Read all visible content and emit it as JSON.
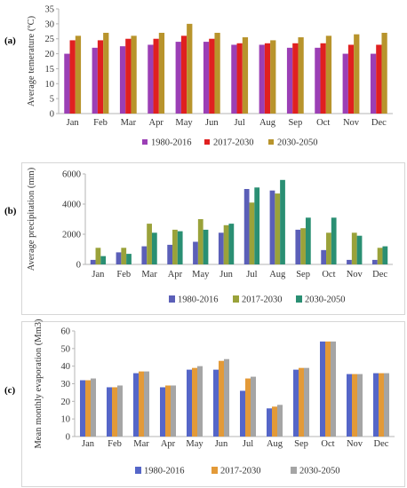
{
  "panels": [
    {
      "label": "(a)"
    },
    {
      "label": "(b)"
    },
    {
      "label": "(c)"
    }
  ],
  "chart_data": [
    {
      "type": "bar",
      "title": "",
      "xlabel": "",
      "ylabel": "Average temerature (ºC)",
      "ylim": [
        0,
        35
      ],
      "yticks": [
        0,
        5,
        10,
        15,
        20,
        25,
        30,
        35
      ],
      "grid": false,
      "legend": "bottom",
      "categories": [
        "Jan",
        "Feb",
        "Mar",
        "Apr",
        "May",
        "Jun",
        "Jul",
        "Aug",
        "Sep",
        "Oct",
        "Nov",
        "Dec"
      ],
      "series": [
        {
          "name": "1980-2016",
          "color": "#9b3fb5",
          "values": [
            20,
            22,
            22.5,
            23,
            24,
            24,
            23,
            23,
            22,
            22,
            20,
            20
          ]
        },
        {
          "name": "2017-2030",
          "color": "#e02020",
          "values": [
            24.5,
            24.5,
            25,
            25,
            26,
            25,
            23.5,
            23.5,
            23.5,
            23.5,
            23,
            23
          ]
        },
        {
          "name": "2030-2050",
          "color": "#b8942c",
          "values": [
            26,
            27,
            26,
            27,
            30,
            27,
            25.5,
            24.5,
            25.5,
            26,
            26.5,
            27
          ]
        }
      ]
    },
    {
      "type": "bar",
      "title": "",
      "xlabel": "",
      "ylabel": "Average precipitation (mm)",
      "ylim": [
        0,
        6000
      ],
      "yticks": [
        0,
        2000,
        4000,
        6000
      ],
      "grid": false,
      "legend": "bottom",
      "categories": [
        "Jan",
        "Feb",
        "Mar",
        "Apr",
        "May",
        "Jun",
        "Jul",
        "Aug",
        "Sep",
        "Oct",
        "Nov",
        "Dec"
      ],
      "series": [
        {
          "name": "1980-2016",
          "color": "#5b5fb8",
          "values": [
            300,
            800,
            1200,
            1300,
            1500,
            2100,
            5000,
            4900,
            2300,
            950,
            300,
            300
          ]
        },
        {
          "name": "2017-2030",
          "color": "#9aa23a",
          "values": [
            1100,
            1100,
            2700,
            2300,
            3000,
            2600,
            4100,
            4700,
            2400,
            2100,
            2100,
            1100
          ]
        },
        {
          "name": "2030-2050",
          "color": "#2a8f73",
          "values": [
            550,
            700,
            2100,
            2200,
            2300,
            2700,
            5100,
            5600,
            3100,
            3100,
            1900,
            1200
          ]
        }
      ]
    },
    {
      "type": "bar",
      "title": "",
      "xlabel": "",
      "ylabel": "Mean monthly  evaporation (Mm3)",
      "ylim": [
        0,
        60
      ],
      "yticks": [
        0,
        10,
        20,
        30,
        40,
        50,
        60
      ],
      "grid": false,
      "legend": "bottom",
      "categories": [
        "Jan",
        "Feb",
        "Mar",
        "Apr",
        "May",
        "Jun",
        "Jul",
        "Aug",
        "Sep",
        "Oct",
        "Nov",
        "Dec"
      ],
      "series": [
        {
          "name": "1980-2016",
          "color": "#5566c8",
          "values": [
            32,
            28,
            36,
            28,
            38,
            38,
            26,
            16,
            38,
            54,
            35.5,
            36
          ]
        },
        {
          "name": "2017-2030",
          "color": "#e39a38",
          "values": [
            32,
            28,
            37,
            29,
            39,
            43,
            33,
            17,
            39,
            54,
            35.5,
            36
          ]
        },
        {
          "name": "2030-2050",
          "color": "#a5a5a5",
          "values": [
            33,
            29,
            37,
            29,
            40,
            44,
            34,
            18,
            39,
            54,
            35.5,
            36
          ]
        }
      ]
    }
  ]
}
